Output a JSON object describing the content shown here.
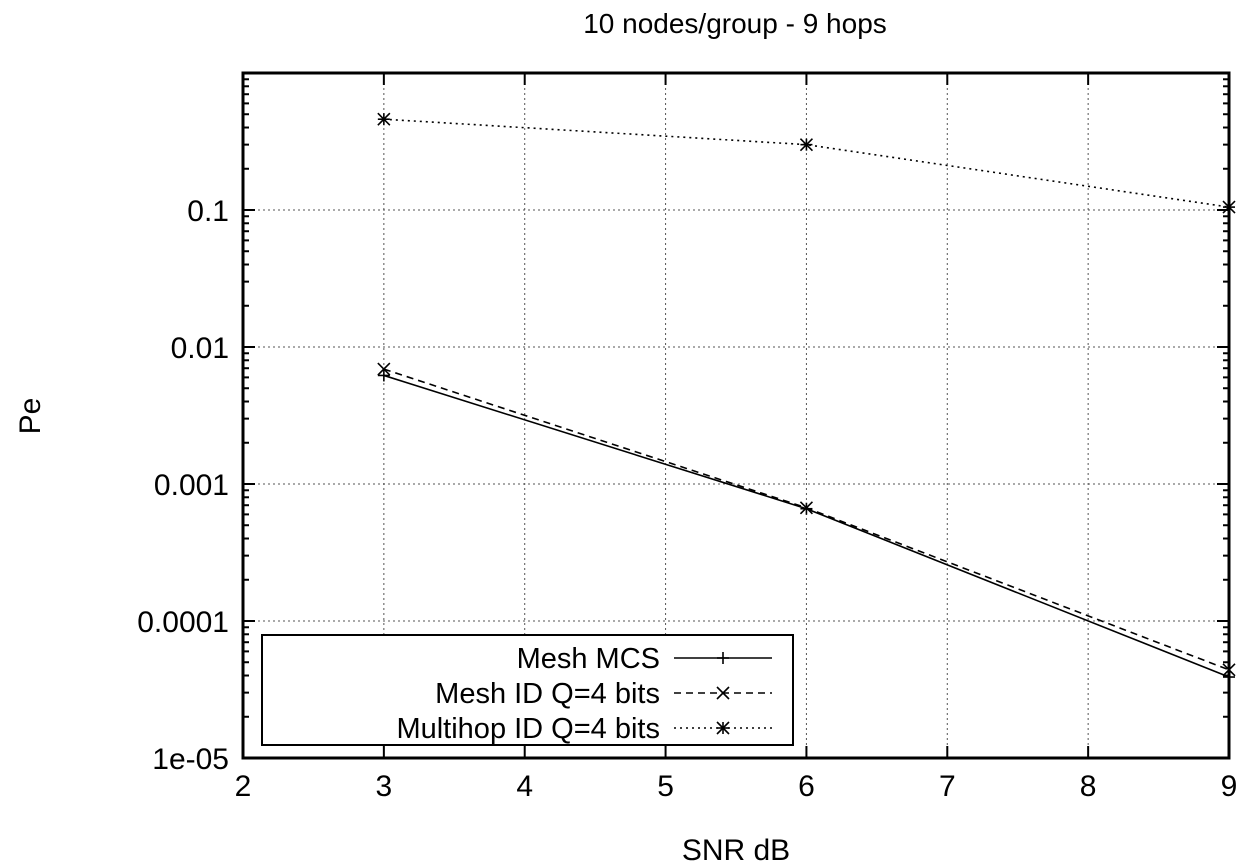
{
  "chart_data": {
    "type": "line",
    "title": "10 nodes/group - 9 hops",
    "xlabel": "SNR dB",
    "ylabel": "Pe",
    "xlim": [
      2,
      9
    ],
    "ylim": [
      1e-05,
      1
    ],
    "yscale": "log",
    "grid": true,
    "legend_position": "bottom-left",
    "x_ticks": [
      {
        "value": 2,
        "label": "2"
      },
      {
        "value": 3,
        "label": "3"
      },
      {
        "value": 4,
        "label": "4"
      },
      {
        "value": 5,
        "label": "5"
      },
      {
        "value": 6,
        "label": "6"
      },
      {
        "value": 7,
        "label": "7"
      },
      {
        "value": 8,
        "label": "8"
      },
      {
        "value": 9,
        "label": "9"
      }
    ],
    "y_ticks": [
      {
        "value": 1e-05,
        "label": "1e-05"
      },
      {
        "value": 0.0001,
        "label": "0.0001"
      },
      {
        "value": 0.001,
        "label": "0.001"
      },
      {
        "value": 0.01,
        "label": "0.01"
      },
      {
        "value": 0.1,
        "label": "0.1"
      }
    ],
    "series": [
      {
        "name": "Mesh MCS",
        "marker": "plus",
        "dash": "solid",
        "x": [
          3,
          6,
          9
        ],
        "y": [
          0.0062,
          0.00066,
          3.9e-05
        ]
      },
      {
        "name": "Mesh ID Q=4 bits",
        "marker": "cross",
        "dash": "dashed",
        "x": [
          3,
          6,
          9
        ],
        "y": [
          0.0069,
          0.00067,
          4.4e-05
        ]
      },
      {
        "name": "Multihop ID Q=4 bits",
        "marker": "star",
        "dash": "dotted",
        "x": [
          3,
          6,
          9
        ],
        "y": [
          0.46,
          0.3,
          0.105
        ]
      }
    ]
  }
}
